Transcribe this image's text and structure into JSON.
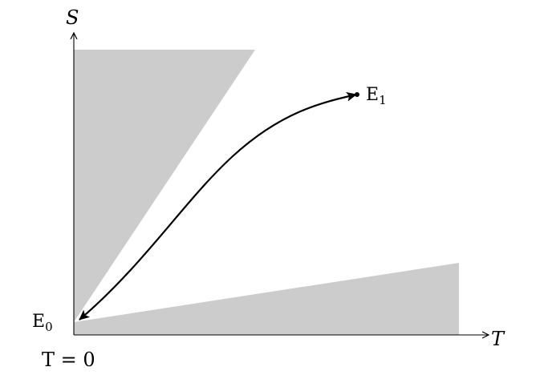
{
  "axes": {
    "y_label": "S",
    "x_label": "T",
    "origin_label": "T = 0"
  },
  "points": {
    "start": {
      "label": "E",
      "subscript": "0"
    },
    "end": {
      "label": "E",
      "subscript": "1"
    }
  },
  "colors": {
    "region_fill": "#cccccc",
    "axis": "#000000",
    "curve": "#000000",
    "background": "#ffffff"
  }
}
